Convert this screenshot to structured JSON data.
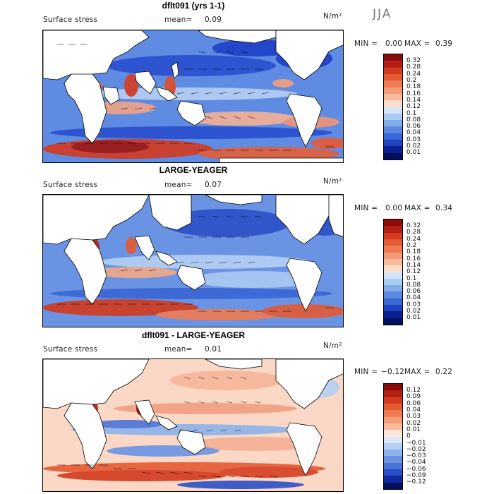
{
  "season": "JJA",
  "units": "N/m²",
  "variable_label": "Surface stress",
  "mean_label": "mean=",
  "min_label": "MIN =",
  "max_label": "MAX =",
  "panels": [
    {
      "title": "dflt091 (yrs 1-1)",
      "mean": "0.09",
      "min": "0.00",
      "max": "0.39"
    },
    {
      "title": "LARGE-YEAGER",
      "mean": "0.07",
      "min": "0.00",
      "max": "0.34"
    },
    {
      "title": "dflt091 - LARGE-YEAGER",
      "mean": "0.01",
      "min": "−0.12",
      "max": "0.22"
    }
  ],
  "colorbars": [
    {
      "labels": [
        "0.32",
        "0.28",
        "0.24",
        "0.2",
        "0.18",
        "0.16",
        "0.14",
        "0.12",
        "0.1",
        "0.08",
        "0.06",
        "0.04",
        "0.03",
        "0.02",
        "0.01"
      ],
      "colors": [
        "#8b0a0a",
        "#b41e14",
        "#d33a1e",
        "#e45a32",
        "#ef7b52",
        "#f59b78",
        "#f9bc9f",
        "#fcdccb",
        "#d4e4fa",
        "#aacbf2",
        "#82acea",
        "#5a88e0",
        "#3a66d6",
        "#1e44c2",
        "#0a1f8f",
        "#03105e"
      ]
    },
    {
      "labels": [
        "0.32",
        "0.28",
        "0.24",
        "0.2",
        "0.18",
        "0.16",
        "0.14",
        "0.12",
        "0.1",
        "0.08",
        "0.06",
        "0.04",
        "0.03",
        "0.02",
        "0.01"
      ],
      "colors": [
        "#8b0a0a",
        "#b41e14",
        "#d33a1e",
        "#e45a32",
        "#ef7b52",
        "#f59b78",
        "#f9bc9f",
        "#fcdccb",
        "#d4e4fa",
        "#aacbf2",
        "#82acea",
        "#5a88e0",
        "#3a66d6",
        "#1e44c2",
        "#0a1f8f",
        "#03105e"
      ]
    },
    {
      "labels": [
        "0.12",
        "0.09",
        "0.06",
        "0.04",
        "0.03",
        "0.02",
        "0.01",
        "0",
        "−0.01",
        "−0.02",
        "−0.03",
        "−0.04",
        "−0.06",
        "−0.09",
        "−0.12"
      ],
      "colors": [
        "#8b0a0a",
        "#b41e14",
        "#d33a1e",
        "#e45a32",
        "#ef7b52",
        "#f59b78",
        "#f9bc9f",
        "#fde5da",
        "#dbe8fb",
        "#b5d0f4",
        "#8db3ec",
        "#6a94e3",
        "#4a72d9",
        "#2a50c8",
        "#0f2aa0",
        "#03105e"
      ]
    }
  ],
  "colors": {
    "land": "#ffffff",
    "coast": "#000000",
    "arrow": "#000000"
  }
}
